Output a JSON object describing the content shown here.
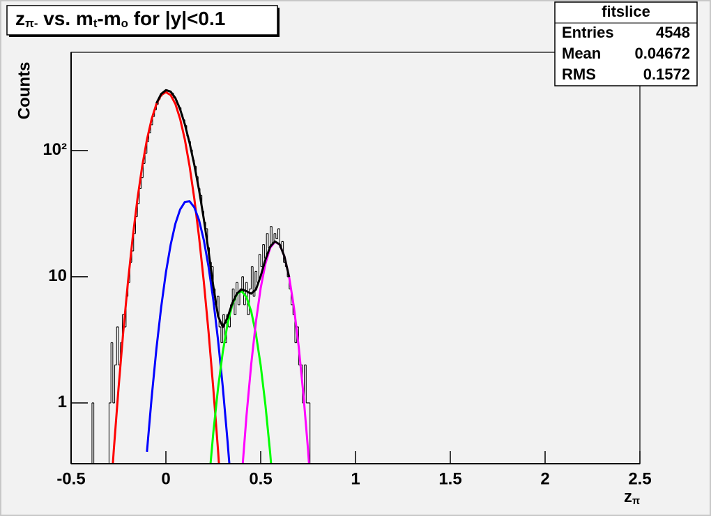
{
  "chart_data": {
    "type": "histogram",
    "title": [
      "z",
      "π-",
      " vs. m",
      "t",
      "-m",
      "o",
      " for |y|<0.1"
    ],
    "x_label": [
      "z",
      "π"
    ],
    "y_label": "Counts",
    "xlim": [
      -0.5,
      2.5
    ],
    "xticks": [
      -0.5,
      0,
      0.5,
      1,
      1.5,
      2,
      2.5
    ],
    "ylim": [
      0.33,
      600
    ],
    "yticks": [
      1,
      10,
      {
        "value": 100,
        "label": "10²"
      }
    ],
    "log_y": true,
    "color": "#000000",
    "bins": [
      -0.4,
      -0.39,
      -0.38,
      -0.37,
      -0.36,
      -0.35,
      -0.34,
      -0.33,
      -0.32,
      -0.31,
      -0.3,
      -0.29,
      -0.28,
      -0.27,
      -0.26,
      -0.25,
      -0.24,
      -0.23,
      -0.22,
      -0.21,
      -0.2,
      -0.19,
      -0.18,
      -0.17,
      -0.16,
      -0.15,
      -0.14,
      -0.13,
      -0.12,
      -0.11,
      -0.1,
      -0.09,
      -0.08,
      -0.07,
      -0.06,
      -0.05,
      -0.04,
      -0.03,
      -0.02,
      -0.01,
      0,
      0.01,
      0.02,
      0.03,
      0.04,
      0.05,
      0.06,
      0.07,
      0.08,
      0.09,
      0.1,
      0.11,
      0.12,
      0.13,
      0.14,
      0.15,
      0.16,
      0.17,
      0.18,
      0.19,
      0.2,
      0.21,
      0.22,
      0.23,
      0.24,
      0.25,
      0.26,
      0.27,
      0.28,
      0.29,
      0.3,
      0.31,
      0.32,
      0.33,
      0.34,
      0.35,
      0.36,
      0.37,
      0.38,
      0.39,
      0.4,
      0.41,
      0.42,
      0.43,
      0.44,
      0.45,
      0.46,
      0.47,
      0.48,
      0.49,
      0.5,
      0.51,
      0.52,
      0.53,
      0.54,
      0.55,
      0.56,
      0.57,
      0.58,
      0.59,
      0.6,
      0.61,
      0.62,
      0.63,
      0.64,
      0.65,
      0.66,
      0.67,
      0.68,
      0.69,
      0.7,
      0.71,
      0.72,
      0.73,
      0.74,
      0.75,
      0.76,
      0.77,
      0.78
    ],
    "values": [
      0,
      1,
      0,
      0,
      0,
      0,
      0,
      0,
      0,
      0,
      1,
      3,
      1,
      2,
      4,
      2,
      3,
      5,
      4,
      7,
      9,
      13,
      16,
      22,
      30,
      38,
      50,
      61,
      79,
      95,
      118,
      138,
      160,
      186,
      210,
      232,
      255,
      270,
      288,
      296,
      302,
      297,
      290,
      285,
      262,
      250,
      231,
      218,
      192,
      175,
      158,
      130,
      118,
      101,
      84,
      75,
      62,
      50,
      44,
      33,
      27,
      24,
      17,
      13,
      12,
      8,
      6,
      7,
      4,
      3,
      5,
      3,
      5,
      4,
      6,
      8,
      5,
      9,
      6,
      8,
      10,
      6,
      9,
      5,
      8,
      12,
      7,
      11,
      9,
      15,
      12,
      18,
      14,
      22,
      17,
      25,
      18,
      22,
      20,
      24,
      17,
      19,
      13,
      12,
      10,
      8,
      6,
      5,
      3,
      4,
      2,
      2,
      1,
      2,
      1,
      1,
      0,
      0
    ],
    "fits": [
      {
        "color": "#ff0000",
        "x": [
          -0.3,
          -0.275,
          -0.25,
          -0.225,
          -0.2,
          -0.175,
          -0.15,
          -0.125,
          -0.1,
          -0.075,
          -0.05,
          -0.025,
          0,
          0.025,
          0.05,
          0.075,
          0.1,
          0.125,
          0.15,
          0.175,
          0.2,
          0.225,
          0.25,
          0.275,
          0.3
        ],
        "values": [
          0.12,
          0.42,
          1.3,
          3.64,
          9.11,
          20.5,
          41.4,
          75,
          122,
          178,
          234,
          275,
          290,
          275,
          234,
          178,
          122,
          75,
          41.4,
          20.5,
          9.11,
          3.64,
          1.3,
          0.42,
          0.12
        ]
      },
      {
        "color": "#0000ff",
        "x": [
          -0.1,
          -0.075,
          -0.05,
          -0.025,
          0,
          0.025,
          0.05,
          0.075,
          0.1,
          0.125,
          0.15,
          0.175,
          0.2,
          0.225,
          0.25,
          0.275,
          0.3,
          0.325,
          0.35
        ],
        "values": [
          0.41,
          1.11,
          2.69,
          5.73,
          10.8,
          17.9,
          26.3,
          34.1,
          39.1,
          39.6,
          35.4,
          28,
          19.5,
          12,
          6.56,
          3.15,
          1.34,
          0.5,
          0.17
        ]
      },
      {
        "color": "#00ff00",
        "x": [
          0.225,
          0.25,
          0.275,
          0.3,
          0.325,
          0.35,
          0.375,
          0.4,
          0.425,
          0.45,
          0.475,
          0.5,
          0.525,
          0.55,
          0.575
        ],
        "values": [
          0.22,
          0.58,
          1.31,
          2.53,
          4.21,
          6,
          7.33,
          7.68,
          6.89,
          5.31,
          3.5,
          1.98,
          0.96,
          0.4,
          0.14
        ]
      },
      {
        "color": "#ff00ff",
        "x": [
          0.4,
          0.425,
          0.45,
          0.475,
          0.5,
          0.525,
          0.55,
          0.575,
          0.6,
          0.625,
          0.65,
          0.675,
          0.7,
          0.725,
          0.75,
          0.775
        ],
        "values": [
          0.26,
          0.79,
          2.03,
          4.42,
          8.15,
          12.7,
          16.9,
          18.9,
          18,
          14.5,
          9.94,
          5.76,
          2.83,
          1.18,
          0.42,
          0.12
        ]
      },
      {
        "color": "#000000",
        "x": [
          -0.05,
          -0.025,
          0,
          0.025,
          0.05,
          0.075,
          0.1,
          0.125,
          0.15,
          0.175,
          0.2,
          0.225,
          0.25,
          0.275,
          0.3,
          0.325,
          0.35,
          0.375,
          0.4,
          0.425,
          0.45,
          0.475,
          0.5,
          0.525,
          0.55,
          0.575,
          0.6,
          0.625,
          0.65
        ],
        "values": [
          236.7,
          280.7,
          300.8,
          292.9,
          260.3,
          212.1,
          161.1,
          114.6,
          76.8,
          48.5,
          28.6,
          15.9,
          8.44,
          4.88,
          3.99,
          4.74,
          6.17,
          7.38,
          7.94,
          7.68,
          7.34,
          7.92,
          10.13,
          13.66,
          17.3,
          19.04,
          18.04,
          14.5,
          9.94
        ]
      }
    ],
    "stats": {
      "title": "fitslice",
      "labels": [
        "Entries",
        "Mean",
        "RMS"
      ],
      "values": [
        4548,
        0.04672,
        0.1572
      ]
    }
  }
}
